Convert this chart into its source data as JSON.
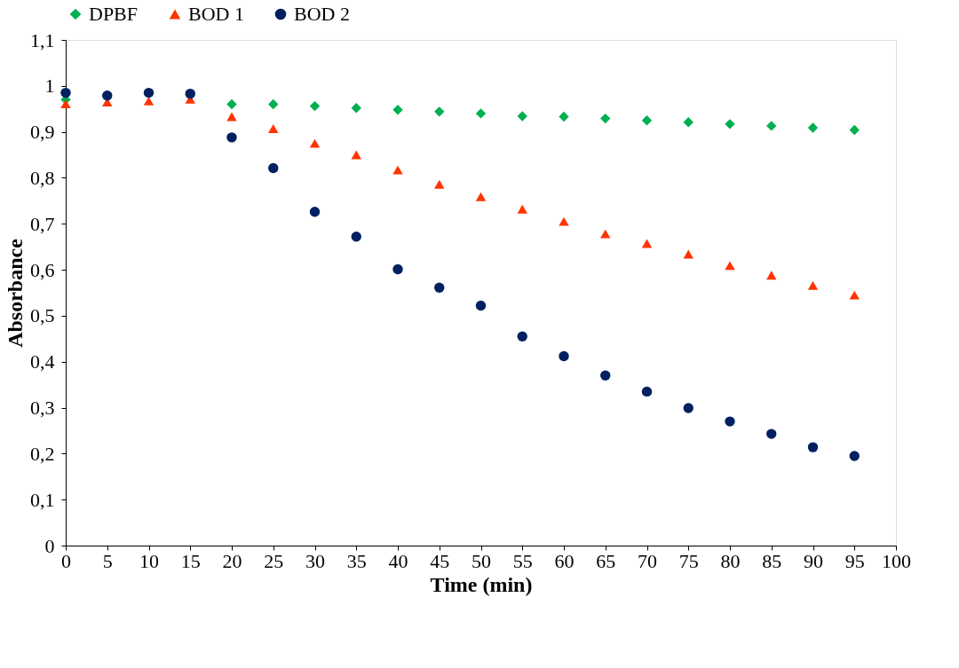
{
  "chart_data": {
    "type": "scatter",
    "xlabel": "Time (min)",
    "ylabel": "Absorbance",
    "x": [
      0,
      5,
      10,
      15,
      20,
      25,
      30,
      35,
      40,
      45,
      50,
      55,
      60,
      65,
      70,
      75,
      80,
      85,
      90,
      95
    ],
    "series": [
      {
        "name": "DPBF",
        "color": "#00b050",
        "marker": "diamond",
        "values": [
          0.97,
          null,
          null,
          null,
          0.96,
          0.96,
          0.956,
          0.952,
          0.948,
          0.944,
          0.94,
          0.934,
          0.933,
          0.929,
          0.925,
          0.921,
          0.917,
          0.913,
          0.909,
          0.904
        ]
      },
      {
        "name": "BOD 1",
        "color": "#ff3300",
        "marker": "triangle",
        "values": [
          0.961,
          0.965,
          0.967,
          0.971,
          0.933,
          0.907,
          0.875,
          0.85,
          0.817,
          0.786,
          0.759,
          0.732,
          0.705,
          0.678,
          0.657,
          0.634,
          0.609,
          0.588,
          0.566,
          0.545
        ]
      },
      {
        "name": "BOD 2",
        "color": "#002060",
        "marker": "circle",
        "values": [
          0.985,
          0.979,
          0.985,
          0.983,
          0.888,
          0.821,
          0.726,
          0.672,
          0.601,
          0.561,
          0.522,
          0.455,
          0.412,
          0.37,
          0.335,
          0.299,
          0.27,
          0.243,
          0.214,
          0.195
        ]
      }
    ],
    "xlim": [
      0,
      100
    ],
    "xticks": [
      0,
      5,
      10,
      15,
      20,
      25,
      30,
      35,
      40,
      45,
      50,
      55,
      60,
      65,
      70,
      75,
      80,
      85,
      90,
      95,
      100
    ],
    "ylim": [
      0,
      1.1
    ],
    "yticks": [
      0,
      {
        "value": 0.1,
        "label": "0,1"
      },
      {
        "value": 0.2,
        "label": "0,2"
      },
      {
        "value": 0.3,
        "label": "0,3"
      },
      {
        "value": 0.4,
        "label": "0,4"
      },
      {
        "value": 0.5,
        "label": "0,5"
      },
      {
        "value": 0.6,
        "label": "0,6"
      },
      {
        "value": 0.7,
        "label": "0,7"
      },
      {
        "value": 0.8,
        "label": "0,8"
      },
      {
        "value": 0.9,
        "label": "0,9"
      },
      1,
      {
        "value": 1.1,
        "label": "1,1"
      }
    ],
    "grid": false,
    "legend": "top"
  }
}
